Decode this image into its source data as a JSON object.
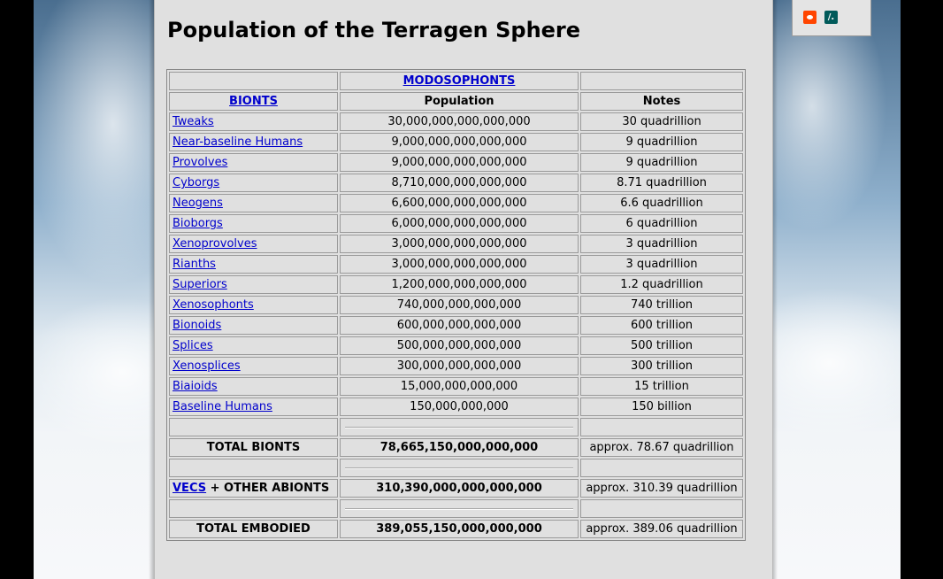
{
  "page": {
    "title": "Population of the Terragen Sphere"
  },
  "table": {
    "header_top": {
      "c2": "MODOSOPHONTS"
    },
    "header": {
      "c1": "BIONTS",
      "c2": "Population",
      "c3": "Notes"
    },
    "rows": [
      {
        "name": "Tweaks",
        "population": "30,000,000,000,000,000",
        "notes": "30 quadrillion"
      },
      {
        "name": "Near-baseline Humans",
        "population": "9,000,000,000,000,000",
        "notes": "9 quadrillion"
      },
      {
        "name": "Provolves",
        "population": "9,000,000,000,000,000",
        "notes": "9 quadrillion"
      },
      {
        "name": "Cyborgs",
        "population": "8,710,000,000,000,000",
        "notes": "8.71 quadrillion"
      },
      {
        "name": "Neogens",
        "population": "6,600,000,000,000,000",
        "notes": "6.6 quadrillion"
      },
      {
        "name": "Bioborgs",
        "population": "6,000,000,000,000,000",
        "notes": "6 quadrillion"
      },
      {
        "name": "Xenoprovolves",
        "population": "3,000,000,000,000,000",
        "notes": "3 quadrillion"
      },
      {
        "name": "Rianths",
        "population": "3,000,000,000,000,000",
        "notes": "3 quadrillion"
      },
      {
        "name": "Superiors",
        "population": "1,200,000,000,000,000",
        "notes": "1.2 quadrillion"
      },
      {
        "name": "Xenosophonts",
        "population": "740,000,000,000,000",
        "notes": "740 trillion"
      },
      {
        "name": "Bionoids",
        "population": "600,000,000,000,000",
        "notes": "600 trillion"
      },
      {
        "name": "Splices",
        "population": "500,000,000,000,000",
        "notes": "500 trillion"
      },
      {
        "name": "Xenosplices",
        "population": "300,000,000,000,000",
        "notes": "300 trillion"
      },
      {
        "name": "Biaioids",
        "population": "15,000,000,000,000",
        "notes": "15 trillion"
      },
      {
        "name": "Baseline Humans",
        "population": "150,000,000,000",
        "notes": "150 billion"
      }
    ],
    "total_bionts": {
      "label": "TOTAL BIONTS",
      "population": "78,665,150,000,000,000",
      "notes": "approx. 78.67 quadrillion"
    },
    "vecs": {
      "link": "VECS",
      "suffix": " + OTHER ABIONTS",
      "population": "310,390,000,000,000,000",
      "notes": "approx. 310.39 quadrillion"
    },
    "total_embodied": {
      "label": "TOTAL EMBODIED",
      "population": "389,055,150,000,000,000",
      "notes": "approx. 389.06 quadrillion"
    }
  },
  "share": {
    "icons": [
      "bookmark-icon",
      "twitter-icon",
      "pocket-icon",
      "reddit-icon",
      "slashdot-icon"
    ],
    "slashdot_glyph": "/."
  }
}
